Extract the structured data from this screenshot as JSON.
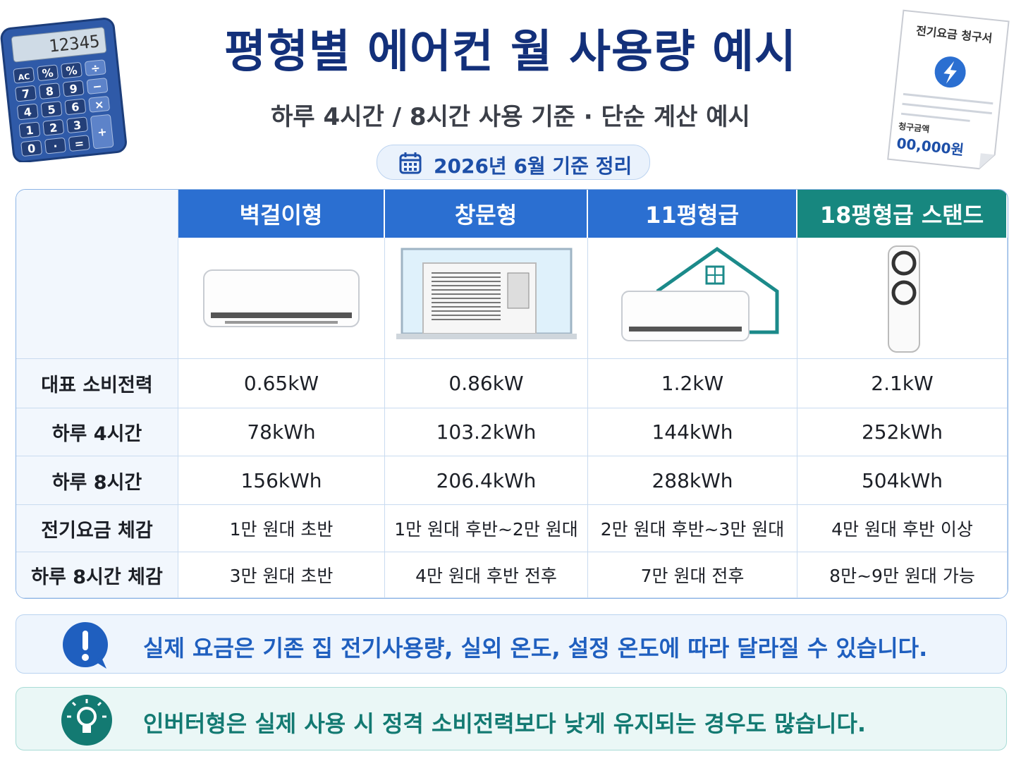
{
  "header": {
    "title": "평형별 에어컨 월 사용량 예시",
    "subtitle": "하루 4시간 / 8시간 사용 기준 · 단순 계산 예시",
    "date_badge": "2026년 6월 기준 정리"
  },
  "calculator": {
    "display": "12345",
    "keys": [
      "AC",
      "%",
      "%",
      "÷",
      "7",
      "8",
      "9",
      "−",
      "4",
      "5",
      "6",
      "×",
      "1",
      "2",
      "3",
      "+",
      "0",
      "·",
      "="
    ]
  },
  "bill": {
    "title": "전기요금 청구서",
    "amount_label": "청구금액",
    "amount": "00,000원"
  },
  "table": {
    "columns": [
      "벽걸이형",
      "창문형",
      "11평형급",
      "18평형급 스탠드"
    ],
    "rows": [
      [
        "대표 소비전력",
        "0.65kW",
        "0.86kW",
        "1.2kW",
        "2.1kW"
      ],
      [
        "하루 4시간",
        "78kWh",
        "103.2kWh",
        "144kWh",
        "252kWh"
      ],
      [
        "하루 8시간",
        "156kWh",
        "206.4kWh",
        "288kWh",
        "504kWh"
      ],
      [
        "전기요금 체감",
        "1만 원대 초반",
        "1만 원대 후반~2만 원대",
        "2만 원대 후반~3만 원대",
        "4만 원대 후반 이상"
      ],
      [
        "하루 8시간 체감",
        "3만 원대 초반",
        "4만 원대 후반 전후",
        "7만 원대 전후",
        "8만~9만 원대 가능"
      ]
    ]
  },
  "notes": [
    "실제 요금은 기존 집 전기사용량, 실외 온도, 설정 온도에 따라 달라질 수 있습니다.",
    "인버터형은 실제 사용 시 정격 소비전력보다 낮게 유지되는 경우도 많습니다."
  ]
}
